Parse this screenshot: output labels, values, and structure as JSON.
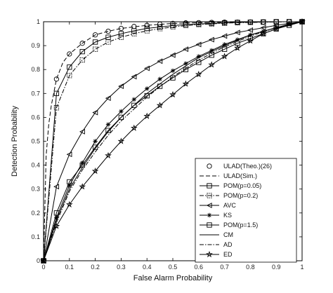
{
  "chart_data": {
    "type": "line",
    "title": "",
    "xlabel": "False Alarm Probability",
    "ylabel": "Detection Probability",
    "xlim": [
      0,
      1
    ],
    "ylim": [
      0,
      1
    ],
    "xticks": [
      0,
      0.1,
      0.2,
      0.3,
      0.4,
      0.5,
      0.6,
      0.7,
      0.8,
      0.9,
      1
    ],
    "yticks": [
      0,
      0.1,
      0.2,
      0.3,
      0.4,
      0.5,
      0.6,
      0.7,
      0.8,
      0.9,
      1
    ],
    "grid": false,
    "legend_position": "bottom-right",
    "series": [
      {
        "name": "ULAD(Theo.)(26)",
        "line": "none",
        "marker": "circle",
        "x": [
          0,
          0.05,
          0.1,
          0.15,
          0.2,
          0.25,
          0.3,
          0.35,
          0.4,
          0.45,
          0.5,
          0.55,
          0.6,
          0.65,
          0.7,
          0.75,
          0.8,
          0.85,
          0.9,
          0.95,
          1
        ],
        "y": [
          0,
          0.76,
          0.865,
          0.91,
          0.945,
          0.96,
          0.972,
          0.98,
          0.985,
          0.99,
          0.993,
          0.995,
          0.996,
          0.997,
          0.998,
          0.998,
          0.999,
          0.999,
          1,
          1,
          1
        ]
      },
      {
        "name": "ULAD(Sim.)",
        "line": "dashed",
        "marker": "none",
        "x": [
          0,
          0.01,
          0.02,
          0.03,
          0.05,
          0.075,
          0.1,
          0.15,
          0.2,
          0.25,
          0.3,
          0.4,
          0.5,
          0.6,
          0.7,
          0.8,
          0.9,
          1
        ],
        "y": [
          0,
          0.44,
          0.57,
          0.65,
          0.76,
          0.83,
          0.865,
          0.91,
          0.945,
          0.96,
          0.972,
          0.985,
          0.993,
          0.996,
          0.998,
          0.999,
          1,
          1
        ]
      },
      {
        "name": "POM(p=0.05)",
        "line": "solid",
        "marker": "square",
        "x": [
          0,
          0.05,
          0.1,
          0.15,
          0.2,
          0.25,
          0.3,
          0.35,
          0.4,
          0.45,
          0.5,
          0.55,
          0.6,
          0.65,
          0.7,
          0.75,
          0.8,
          0.85,
          0.9,
          0.95,
          1
        ],
        "y": [
          0,
          0.7,
          0.81,
          0.875,
          0.915,
          0.935,
          0.95,
          0.962,
          0.972,
          0.978,
          0.984,
          0.988,
          0.991,
          0.993,
          0.995,
          0.997,
          0.998,
          0.999,
          1,
          1,
          1
        ]
      },
      {
        "name": "POM(p=0.2)",
        "line": "dashdot",
        "marker": "square-dotted",
        "x": [
          0,
          0.05,
          0.1,
          0.15,
          0.2,
          0.25,
          0.3,
          0.35,
          0.4,
          0.45,
          0.5,
          0.55,
          0.6,
          0.65,
          0.7,
          0.75,
          0.8,
          0.85,
          0.9,
          0.95,
          1
        ],
        "y": [
          0,
          0.64,
          0.775,
          0.84,
          0.885,
          0.915,
          0.935,
          0.95,
          0.962,
          0.971,
          0.978,
          0.984,
          0.988,
          0.991,
          0.994,
          0.996,
          0.997,
          0.998,
          0.999,
          1,
          1
        ]
      },
      {
        "name": "AVC",
        "line": "solid",
        "marker": "triangle-left",
        "x": [
          0,
          0.05,
          0.1,
          0.15,
          0.2,
          0.25,
          0.3,
          0.35,
          0.4,
          0.45,
          0.5,
          0.55,
          0.6,
          0.65,
          0.7,
          0.75,
          0.8,
          0.85,
          0.9,
          0.95,
          1
        ],
        "y": [
          0,
          0.31,
          0.445,
          0.54,
          0.62,
          0.68,
          0.73,
          0.77,
          0.805,
          0.835,
          0.86,
          0.885,
          0.905,
          0.925,
          0.94,
          0.955,
          0.965,
          0.975,
          0.985,
          0.993,
          1
        ]
      },
      {
        "name": "KS",
        "line": "solid",
        "marker": "asterisk",
        "x": [
          0,
          0.05,
          0.1,
          0.15,
          0.2,
          0.25,
          0.3,
          0.35,
          0.4,
          0.45,
          0.5,
          0.55,
          0.6,
          0.65,
          0.7,
          0.75,
          0.8,
          0.85,
          0.9,
          0.95,
          1
        ],
        "y": [
          0,
          0.18,
          0.315,
          0.41,
          0.5,
          0.57,
          0.625,
          0.675,
          0.72,
          0.76,
          0.795,
          0.825,
          0.855,
          0.88,
          0.905,
          0.925,
          0.945,
          0.96,
          0.975,
          0.99,
          1
        ]
      },
      {
        "name": "POM(p=1.5)",
        "line": "solid",
        "marker": "square",
        "x": [
          0,
          0.05,
          0.1,
          0.15,
          0.2,
          0.25,
          0.3,
          0.35,
          0.4,
          0.45,
          0.5,
          0.55,
          0.6,
          0.65,
          0.7,
          0.75,
          0.8,
          0.85,
          0.9,
          0.95,
          1
        ],
        "y": [
          0,
          0.2,
          0.33,
          0.4,
          0.475,
          0.545,
          0.6,
          0.65,
          0.69,
          0.73,
          0.765,
          0.8,
          0.83,
          0.86,
          0.885,
          0.91,
          0.93,
          0.95,
          0.97,
          0.985,
          1
        ]
      },
      {
        "name": "CM",
        "line": "solid",
        "marker": "none",
        "x": [
          0,
          0.05,
          0.1,
          0.15,
          0.2,
          0.25,
          0.3,
          0.4,
          0.5,
          0.6,
          0.7,
          0.8,
          0.9,
          1
        ],
        "y": [
          0,
          0.17,
          0.3,
          0.39,
          0.47,
          0.54,
          0.6,
          0.7,
          0.78,
          0.85,
          0.9,
          0.945,
          0.975,
          1
        ]
      },
      {
        "name": "AD",
        "line": "dashdot",
        "marker": "none",
        "x": [
          0,
          0.05,
          0.1,
          0.15,
          0.2,
          0.25,
          0.3,
          0.4,
          0.5,
          0.6,
          0.7,
          0.8,
          0.9,
          1
        ],
        "y": [
          0,
          0.16,
          0.29,
          0.38,
          0.455,
          0.525,
          0.585,
          0.685,
          0.77,
          0.84,
          0.895,
          0.94,
          0.975,
          1
        ]
      },
      {
        "name": "ED",
        "line": "solid",
        "marker": "star",
        "x": [
          0,
          0.05,
          0.1,
          0.15,
          0.2,
          0.25,
          0.3,
          0.35,
          0.4,
          0.45,
          0.5,
          0.55,
          0.6,
          0.65,
          0.7,
          0.75,
          0.8,
          0.85,
          0.9,
          0.95,
          1
        ],
        "y": [
          0,
          0.145,
          0.235,
          0.31,
          0.375,
          0.44,
          0.5,
          0.555,
          0.605,
          0.65,
          0.695,
          0.74,
          0.78,
          0.82,
          0.855,
          0.89,
          0.92,
          0.95,
          0.97,
          0.99,
          1
        ]
      }
    ]
  }
}
